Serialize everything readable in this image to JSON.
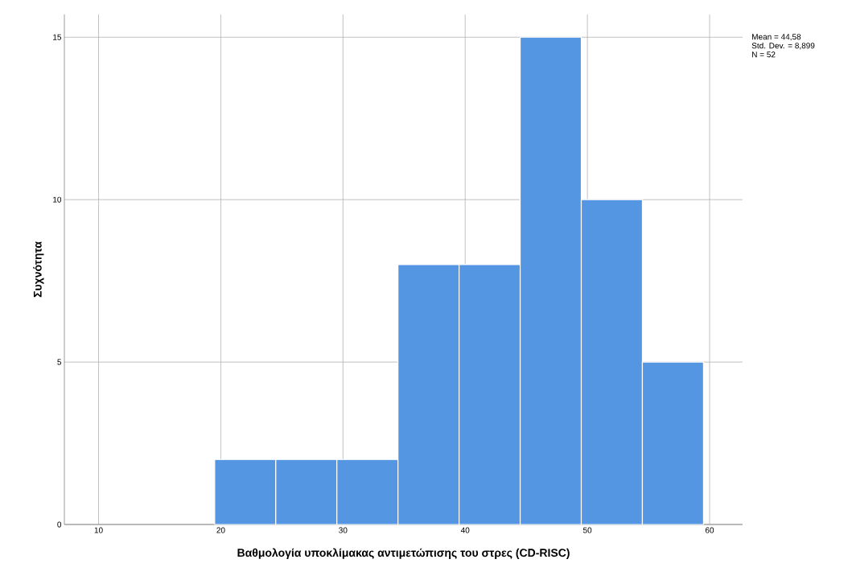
{
  "chart_data": {
    "type": "histogram",
    "xlabel": "Βαθμολογία υποκλίμακας αντιμετώπισης του στρες (CD-RISC)",
    "ylabel": "Συχνότητα",
    "bins": [
      19.5,
      24.5,
      29.5,
      34.5,
      39.5,
      44.5,
      49.5,
      54.5,
      59.5
    ],
    "values": [
      2,
      2,
      2,
      8,
      8,
      15,
      10,
      5
    ],
    "color": "#5596e3",
    "xlim": [
      7.2,
      62.7
    ],
    "ylim": [
      0,
      15.7
    ],
    "xticks": [
      10,
      20,
      30,
      40,
      50,
      60
    ],
    "yticks": [
      0,
      5,
      10,
      15
    ],
    "grid": true,
    "annotations": [
      "Mean = 44,58",
      "Std. Dev. = 8,899",
      "N = 52"
    ]
  }
}
